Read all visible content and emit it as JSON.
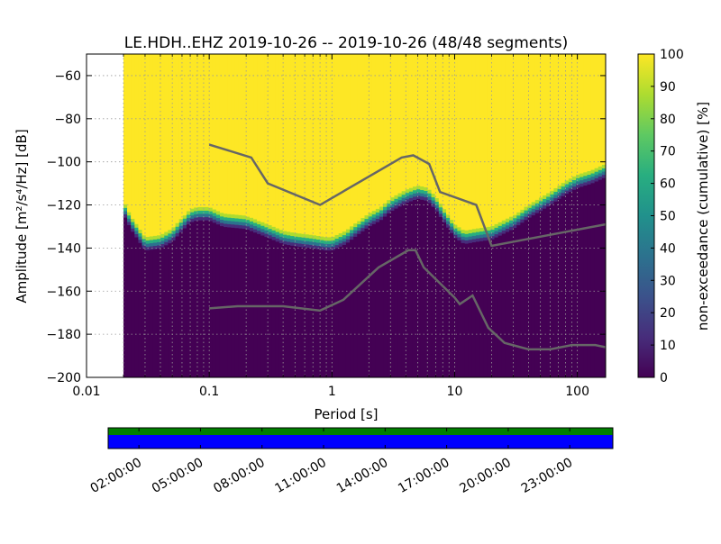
{
  "chart_data": [
    {
      "type": "heatmap",
      "title": "LE.HDH..EHZ   2019-10-26 -- 2019-10-26  (48/48 segments)",
      "xlabel": "Period [s]",
      "ylabel": "Amplitude [m²/s⁴/Hz] [dB]",
      "x_scale": "log",
      "xlim": [
        0.01,
        170
      ],
      "ylim": [
        -200,
        -50
      ],
      "xticks": [
        {
          "value": 0.01,
          "label": "0.01"
        },
        {
          "value": 0.1,
          "label": "0.1"
        },
        {
          "value": 1,
          "label": "1"
        },
        {
          "value": 10,
          "label": "10"
        },
        {
          "value": 100,
          "label": "100"
        }
      ],
      "yticks": [
        {
          "value": -60,
          "label": "−60"
        },
        {
          "value": -80,
          "label": "−80"
        },
        {
          "value": -100,
          "label": "−100"
        },
        {
          "value": -120,
          "label": "−120"
        },
        {
          "value": -140,
          "label": "−140"
        },
        {
          "value": -160,
          "label": "−160"
        },
        {
          "value": -180,
          "label": "−180"
        },
        {
          "value": -200,
          "label": "−200"
        }
      ],
      "grid": true,
      "data_start_period": 0.02,
      "psd_upper_edge": [
        [
          0.02,
          -118
        ],
        [
          0.023,
          -125
        ],
        [
          0.027,
          -131
        ],
        [
          0.03,
          -135
        ],
        [
          0.04,
          -134
        ],
        [
          0.05,
          -131
        ],
        [
          0.06,
          -126
        ],
        [
          0.07,
          -122
        ],
        [
          0.08,
          -121
        ],
        [
          0.1,
          -121
        ],
        [
          0.13,
          -124
        ],
        [
          0.2,
          -125
        ],
        [
          0.3,
          -129
        ],
        [
          0.4,
          -132
        ],
        [
          0.5,
          -133
        ],
        [
          0.7,
          -134
        ],
        [
          0.9,
          -135
        ],
        [
          1,
          -135
        ],
        [
          1.3,
          -132
        ],
        [
          1.6,
          -128
        ],
        [
          2,
          -124
        ],
        [
          2.5,
          -121
        ],
        [
          3,
          -117
        ],
        [
          4,
          -113
        ],
        [
          5,
          -111
        ],
        [
          6,
          -112
        ],
        [
          7,
          -116
        ],
        [
          8,
          -121
        ],
        [
          9,
          -125
        ],
        [
          10,
          -129
        ],
        [
          12,
          -132
        ],
        [
          15,
          -131
        ],
        [
          20,
          -130
        ],
        [
          30,
          -125
        ],
        [
          40,
          -120
        ],
        [
          60,
          -114
        ],
        [
          80,
          -109
        ],
        [
          100,
          -106
        ],
        [
          130,
          -104
        ],
        [
          170,
          -101
        ]
      ],
      "transition_width_db": 6,
      "colorbar": {
        "label": "non-exceedance (cumulative) [%]",
        "range": [
          0,
          100
        ],
        "ticks": [
          0,
          10,
          20,
          30,
          40,
          50,
          60,
          70,
          80,
          90,
          100
        ],
        "colormap": [
          "#440154",
          "#472d7b",
          "#3b528b",
          "#2c728e",
          "#21918c",
          "#28ae80",
          "#5ec962",
          "#addc30",
          "#fde725"
        ]
      },
      "series": [
        {
          "color": "#666666",
          "points": [
            [
              0.1,
              -92
            ],
            [
              0.22,
              -98
            ],
            [
              0.3,
              -110
            ],
            [
              0.8,
              -120
            ],
            [
              3.7,
              -98
            ],
            [
              4.6,
              -97
            ],
            [
              6.2,
              -101
            ],
            [
              7.6,
              -114
            ],
            [
              15,
              -120
            ],
            [
              20,
              -139
            ],
            [
              170,
              -129
            ]
          ]
        },
        {
          "color": "#666666",
          "points": [
            [
              0.1,
              -168
            ],
            [
              0.17,
              -167
            ],
            [
              0.4,
              -167
            ],
            [
              0.8,
              -169
            ],
            [
              1.24,
              -164
            ],
            [
              2.4,
              -149
            ],
            [
              4.2,
              -141
            ],
            [
              4.8,
              -141
            ],
            [
              5.6,
              -149
            ],
            [
              10,
              -163
            ],
            [
              11,
              -166
            ],
            [
              14,
              -162
            ],
            [
              18.8,
              -177
            ],
            [
              25.5,
              -184
            ],
            [
              40,
              -187
            ],
            [
              60,
              -187
            ],
            [
              90,
              -185
            ],
            [
              140,
              -185
            ],
            [
              170,
              -186
            ]
          ]
        }
      ]
    },
    {
      "type": "timeline",
      "tick_labels": [
        "02:00:00",
        "05:00:00",
        "08:00:00",
        "11:00:00",
        "14:00:00",
        "17:00:00",
        "20:00:00",
        "23:00:00"
      ],
      "tick_hours": [
        2,
        5,
        8,
        11,
        14,
        17,
        20,
        23
      ],
      "range_hours": [
        0.5,
        25.1
      ],
      "bands": [
        {
          "color": "#008000",
          "coverage": 1.0
        },
        {
          "color": "#0000ff",
          "coverage": 1.0
        }
      ]
    }
  ]
}
